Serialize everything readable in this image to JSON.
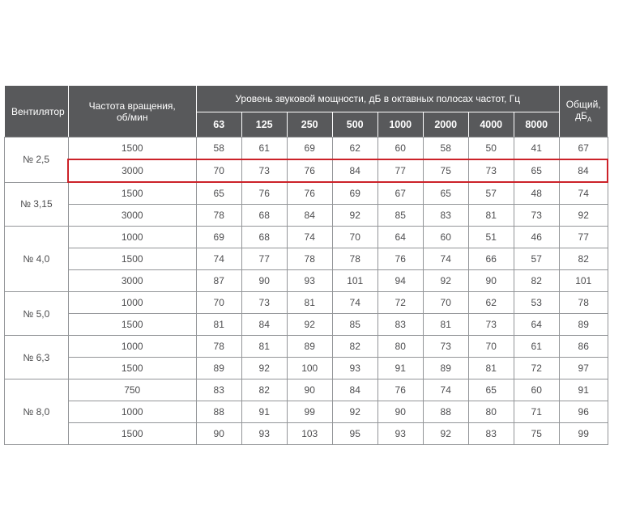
{
  "table": {
    "header": {
      "fan": "Вентилятор",
      "speed_line1": "Частота вращения,",
      "speed_line2": "об/мин",
      "spl_group": "Уровень звуковой мощности, дБ в октавных полосах частот, Гц",
      "bands": [
        "63",
        "125",
        "250",
        "500",
        "1000",
        "2000",
        "4000",
        "8000"
      ],
      "total": "Общий, дБ",
      "total_sub": "А"
    },
    "groups": [
      {
        "fan": "№ 2,5",
        "rows": [
          {
            "speed": "1500",
            "values": [
              58,
              61,
              69,
              62,
              60,
              58,
              50,
              41
            ],
            "total": 67
          },
          {
            "speed": "3000",
            "values": [
              70,
              73,
              76,
              84,
              77,
              75,
              73,
              65
            ],
            "total": 84,
            "highlighted": true
          }
        ]
      },
      {
        "fan": "№ 3,15",
        "rows": [
          {
            "speed": "1500",
            "values": [
              65,
              76,
              76,
              69,
              67,
              65,
              57,
              48
            ],
            "total": 74
          },
          {
            "speed": "3000",
            "values": [
              78,
              68,
              84,
              92,
              85,
              83,
              81,
              73
            ],
            "total": 92
          }
        ]
      },
      {
        "fan": "№ 4,0",
        "rows": [
          {
            "speed": "1000",
            "values": [
              69,
              68,
              74,
              70,
              64,
              60,
              51,
              46
            ],
            "total": 77
          },
          {
            "speed": "1500",
            "values": [
              74,
              77,
              78,
              78,
              76,
              74,
              66,
              57
            ],
            "total": 82
          },
          {
            "speed": "3000",
            "values": [
              87,
              90,
              93,
              101,
              94,
              92,
              90,
              82
            ],
            "total": 101
          }
        ]
      },
      {
        "fan": "№ 5,0",
        "rows": [
          {
            "speed": "1000",
            "values": [
              70,
              73,
              81,
              74,
              72,
              70,
              62,
              53
            ],
            "total": 78
          },
          {
            "speed": "1500",
            "values": [
              81,
              84,
              92,
              85,
              83,
              81,
              73,
              64
            ],
            "total": 89
          }
        ]
      },
      {
        "fan": "№ 6,3",
        "rows": [
          {
            "speed": "1000",
            "values": [
              78,
              81,
              89,
              82,
              80,
              73,
              70,
              61
            ],
            "total": 86
          },
          {
            "speed": "1500",
            "values": [
              89,
              92,
              100,
              93,
              91,
              89,
              81,
              72
            ],
            "total": 97
          }
        ]
      },
      {
        "fan": "№ 8,0",
        "rows": [
          {
            "speed": "750",
            "values": [
              83,
              82,
              90,
              84,
              76,
              74,
              65,
              60
            ],
            "total": 91
          },
          {
            "speed": "1000",
            "values": [
              88,
              91,
              99,
              92,
              90,
              88,
              80,
              71
            ],
            "total": 96
          },
          {
            "speed": "1500",
            "values": [
              90,
              93,
              103,
              95,
              93,
              92,
              83,
              75
            ],
            "total": 99
          }
        ]
      }
    ]
  },
  "colors": {
    "page_bg": "#ffffff",
    "header_bg": "#58595b",
    "header_text": "#ffffff",
    "body_text": "#4d4d4f",
    "grid_border": "#939598",
    "highlight_border": "#cc2229"
  }
}
